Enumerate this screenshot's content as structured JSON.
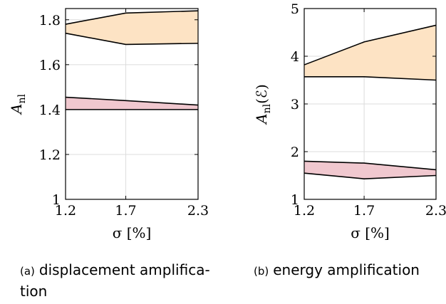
{
  "chart_data": [
    {
      "type": "area",
      "panel_tag": "(a)",
      "caption_lines": [
        "displacement amplifica-",
        "tion"
      ],
      "xlabel": "σ [%]",
      "ylabel": "A_nl",
      "ylabel_base": "A",
      "ylabel_sub": "nl",
      "ylabel_suffix": "",
      "xlim": [
        1.2,
        2.3
      ],
      "ylim": [
        1.0,
        1.85
      ],
      "xticks": [
        1.2,
        1.7,
        2.3
      ],
      "xtick_labels": [
        "1.2",
        "1.7",
        "2.3"
      ],
      "yticks": [
        1.0,
        1.2,
        1.4,
        1.6,
        1.8
      ],
      "ytick_labels": [
        "1",
        "1.2",
        "1.4",
        "1.6",
        "1.8"
      ],
      "grid": true,
      "bands": [
        {
          "color": "#fde3c4",
          "x": [
            1.2,
            1.7,
            2.3
          ],
          "upper": [
            1.78,
            1.83,
            1.84
          ],
          "lower": [
            1.74,
            1.69,
            1.695
          ]
        },
        {
          "color": "#f0c8cf",
          "x": [
            1.2,
            1.7,
            2.3
          ],
          "upper": [
            1.455,
            1.44,
            1.42
          ],
          "lower": [
            1.4,
            1.4,
            1.4
          ]
        }
      ]
    },
    {
      "type": "area",
      "panel_tag": "(b)",
      "caption_lines": [
        "energy amplification"
      ],
      "xlabel": "σ [%]",
      "ylabel": "A_nl(ℰ)",
      "ylabel_base": "A",
      "ylabel_sub": "nl",
      "ylabel_suffix": "(ℰ)",
      "xlim": [
        1.2,
        2.3
      ],
      "ylim": [
        1.0,
        5.0
      ],
      "xticks": [
        1.2,
        1.7,
        2.3
      ],
      "xtick_labels": [
        "1.2",
        "1.7",
        "2.3"
      ],
      "yticks": [
        1,
        2,
        3,
        4,
        5
      ],
      "ytick_labels": [
        "1",
        "2",
        "3",
        "4",
        "5"
      ],
      "grid": true,
      "bands": [
        {
          "color": "#fde3c4",
          "x": [
            1.2,
            1.7,
            2.3
          ],
          "upper": [
            3.82,
            4.3,
            4.65
          ],
          "lower": [
            3.57,
            3.57,
            3.5
          ]
        },
        {
          "color": "#f0c8cf",
          "x": [
            1.2,
            1.7,
            2.3
          ],
          "upper": [
            1.8,
            1.76,
            1.62
          ],
          "lower": [
            1.55,
            1.43,
            1.5
          ]
        }
      ]
    }
  ]
}
